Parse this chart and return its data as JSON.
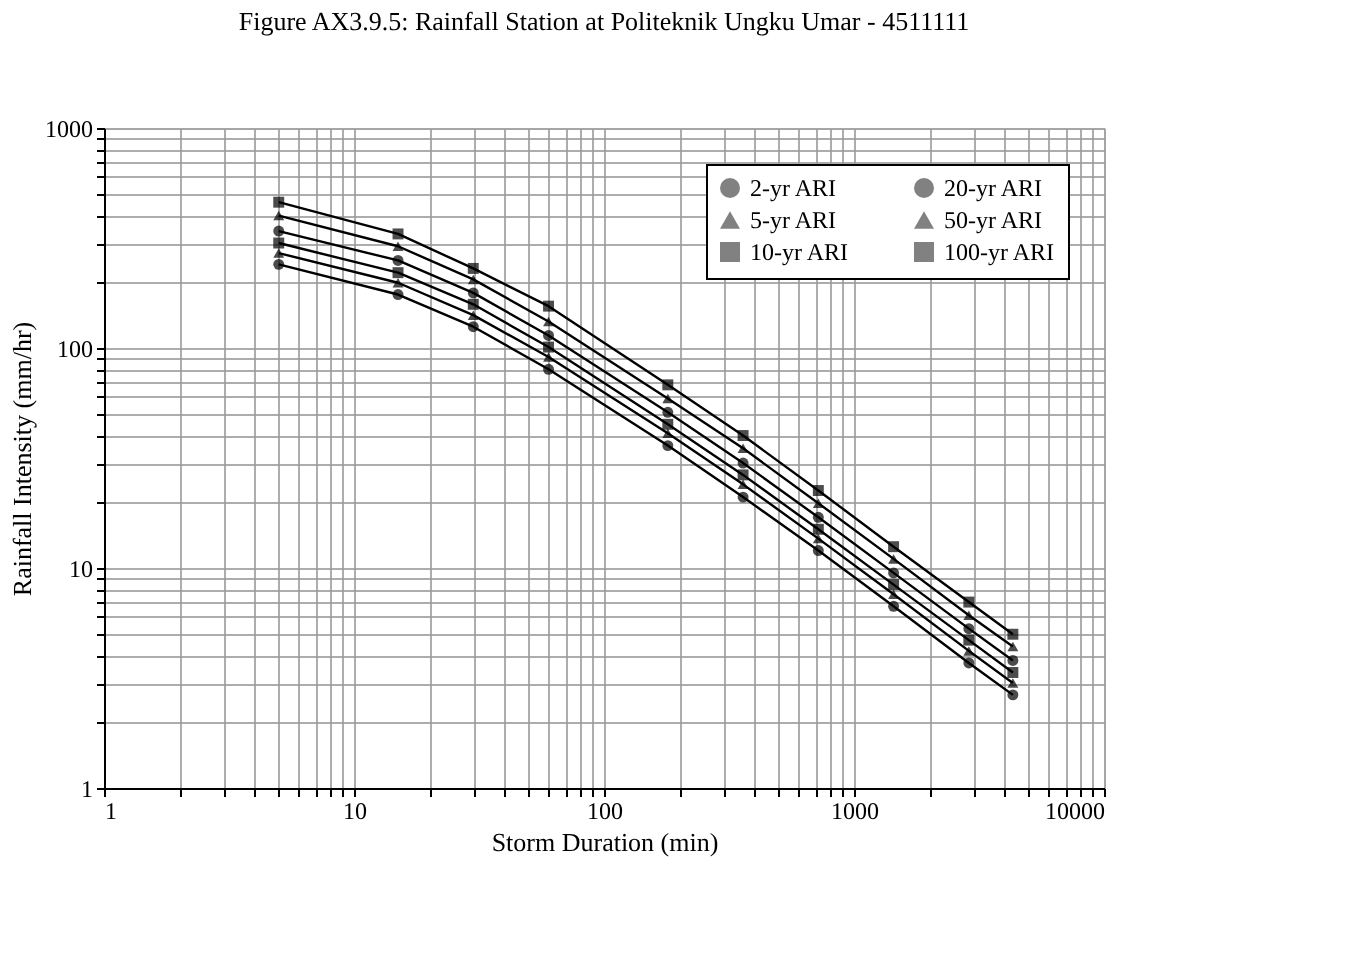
{
  "chart_data": {
    "type": "line",
    "title": "Figure AX3.9.5:  Rainfall Station at Politeknik Ungku Umar - 4511111",
    "xlabel": "Storm Duration (min)",
    "ylabel": "Rainfall Intensity (mm/hr)",
    "x": [
      5,
      15,
      30,
      60,
      180,
      360,
      720,
      1440,
      2880,
      4320
    ],
    "series": [
      {
        "name": "2-yr ARI",
        "color": "#000000",
        "marker": "circle",
        "values": [
          240,
          175,
          125,
          80,
          36,
          21,
          12,
          6.7,
          3.7,
          2.65
        ]
      },
      {
        "name": "5-yr ARI",
        "color": "#000000",
        "marker": "triangle",
        "values": [
          270,
          198,
          141,
          91,
          41,
          24,
          13.6,
          7.6,
          4.2,
          3.0
        ]
      },
      {
        "name": "10-yr ARI",
        "color": "#000000",
        "marker": "square",
        "values": [
          300,
          220,
          158,
          101,
          45,
          26.5,
          15,
          8.4,
          4.7,
          3.35
        ]
      },
      {
        "name": "20-yr ARI",
        "color": "#000000",
        "marker": "circle",
        "values": [
          340,
          250,
          178,
          114,
          51,
          30,
          17,
          9.5,
          5.3,
          3.8
        ]
      },
      {
        "name": "50-yr ARI",
        "color": "#000000",
        "marker": "triangle",
        "values": [
          400,
          290,
          205,
          132,
          59,
          35,
          19.7,
          11,
          6.1,
          4.4
        ]
      },
      {
        "name": "100-yr ARI",
        "color": "#000000",
        "marker": "square",
        "values": [
          460,
          330,
          230,
          155,
          68,
          40,
          22.5,
          12.5,
          7.0,
          5.0
        ]
      }
    ],
    "log": "xy",
    "xlim": [
      1,
      10000
    ],
    "ylim": [
      1,
      1000
    ],
    "xticks": [
      1,
      {
        "value": 2,
        "label": null
      },
      {
        "value": 3,
        "label": null
      },
      {
        "value": 4,
        "label": null
      },
      {
        "value": 5,
        "label": null
      },
      {
        "value": 6,
        "label": null
      },
      {
        "value": 7,
        "label": null
      },
      {
        "value": 8,
        "label": null
      },
      {
        "value": 9,
        "label": null
      },
      10,
      {
        "value": 20,
        "label": null
      },
      {
        "value": 30,
        "label": null
      },
      {
        "value": 40,
        "label": null
      },
      {
        "value": 50,
        "label": null
      },
      {
        "value": 60,
        "label": null
      },
      {
        "value": 70,
        "label": null
      },
      {
        "value": 80,
        "label": null
      },
      {
        "value": 90,
        "label": null
      },
      100,
      {
        "value": 200,
        "label": null
      },
      {
        "value": 300,
        "label": null
      },
      {
        "value": 400,
        "label": null
      },
      {
        "value": 500,
        "label": null
      },
      {
        "value": 600,
        "label": null
      },
      {
        "value": 700,
        "label": null
      },
      {
        "value": 800,
        "label": null
      },
      {
        "value": 900,
        "label": null
      },
      1000,
      {
        "value": 2000,
        "label": null
      },
      {
        "value": 3000,
        "label": null
      },
      {
        "value": 4000,
        "label": null
      },
      {
        "value": 5000,
        "label": null
      },
      {
        "value": 6000,
        "label": null
      },
      {
        "value": 7000,
        "label": null
      },
      {
        "value": 8000,
        "label": null
      },
      {
        "value": 9000,
        "label": null
      },
      10000
    ],
    "yticks": [
      1,
      {
        "value": 2,
        "label": null
      },
      {
        "value": 3,
        "label": null
      },
      {
        "value": 4,
        "label": null
      },
      {
        "value": 5,
        "label": null
      },
      {
        "value": 6,
        "label": null
      },
      {
        "value": 7,
        "label": null
      },
      {
        "value": 8,
        "label": null
      },
      {
        "value": 9,
        "label": null
      },
      10,
      {
        "value": 20,
        "label": null
      },
      {
        "value": 30,
        "label": null
      },
      {
        "value": 40,
        "label": null
      },
      {
        "value": 50,
        "label": null
      },
      {
        "value": 60,
        "label": null
      },
      {
        "value": 70,
        "label": null
      },
      {
        "value": 80,
        "label": null
      },
      {
        "value": 90,
        "label": null
      },
      100,
      {
        "value": 200,
        "label": null
      },
      {
        "value": 300,
        "label": null
      },
      {
        "value": 400,
        "label": null
      },
      {
        "value": 500,
        "label": null
      },
      {
        "value": 600,
        "label": null
      },
      {
        "value": 700,
        "label": null
      },
      {
        "value": 800,
        "label": null
      },
      {
        "value": 900,
        "label": null
      },
      1000
    ],
    "grid": true,
    "legend": "top right",
    "line_style": "solid"
  }
}
